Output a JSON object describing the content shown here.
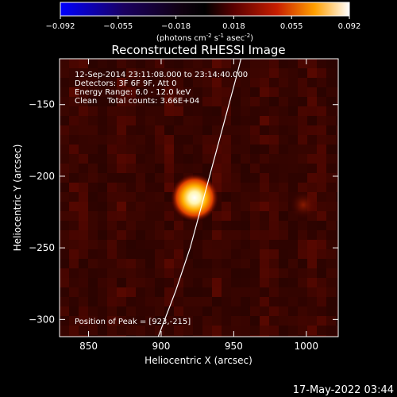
{
  "chart_data": {
    "type": "heatmap",
    "title": "Reconstructed RHESSI Image",
    "xlabel": "Heliocentric X (arcsec)",
    "ylabel": "Heliocentric Y (arcsec)",
    "xlim": [
      830,
      1022
    ],
    "ylim": [
      -312,
      -118
    ],
    "x_ticks": [
      850,
      900,
      950,
      1000
    ],
    "y_ticks": [
      -150,
      -200,
      -250,
      -300
    ],
    "colorbar": {
      "range": [
        -0.092,
        0.092
      ],
      "tick_labels": [
        "-0.092",
        "-0.055",
        "-0.018",
        "0.018",
        "0.055",
        "0.092"
      ],
      "unit_main": "(photons cm",
      "unit_exp1": "-2",
      "unit_mid1": " s",
      "unit_exp2": "-1",
      "unit_mid2": " asec",
      "unit_exp3": "-2",
      "unit_end": ")"
    },
    "info_lines": [
      "12-Sep-2014 23:11:08.000 to 23:14:40.000",
      "Detectors: 3F 6F 9F, Att 0",
      "Energy Range: 6.0 - 12.0 keV",
      "Clean    Total counts: 3.66E+04"
    ],
    "peak": {
      "x": 923,
      "y": -215,
      "value": 0.092
    },
    "peak_label": "Position of Peak = [923,-215]",
    "secondary_source": {
      "x": 998,
      "y": -220,
      "value": 0.02
    },
    "limb_curve": [
      [
        898,
        -312
      ],
      [
        910,
        -280
      ],
      [
        920,
        -250
      ],
      [
        928,
        -220
      ],
      [
        936,
        -190
      ],
      [
        944,
        -160
      ],
      [
        952,
        -130
      ],
      [
        955,
        -118
      ]
    ]
  },
  "timestamp": "17-May-2022 03:44",
  "colors": {
    "background": "#000000",
    "axes": "#ffffff",
    "limb": "#ffffff"
  }
}
